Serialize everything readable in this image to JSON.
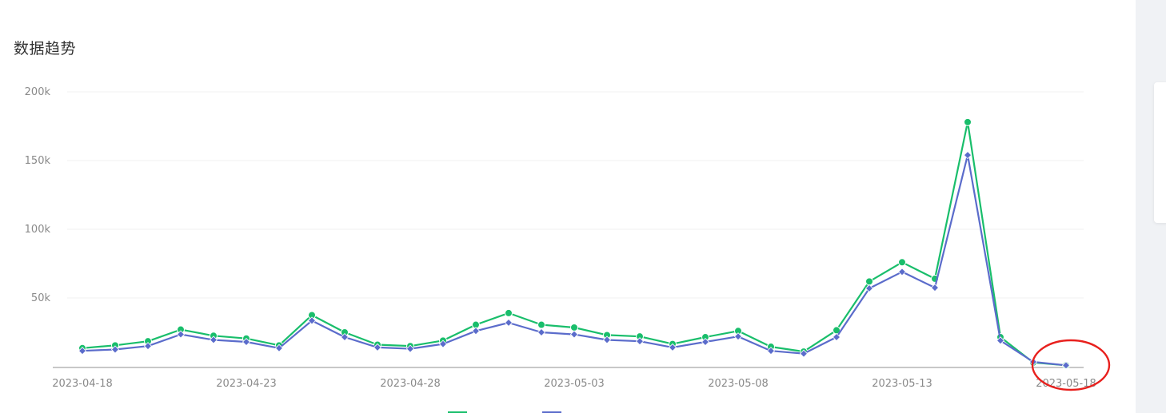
{
  "panel": {
    "title": "数据趋势"
  },
  "chart_data": {
    "type": "line",
    "title": "数据趋势",
    "x": [
      "2023-04-18",
      "2023-04-19",
      "2023-04-20",
      "2023-04-21",
      "2023-04-22",
      "2023-04-23",
      "2023-04-24",
      "2023-04-25",
      "2023-04-26",
      "2023-04-27",
      "2023-04-28",
      "2023-04-29",
      "2023-04-30",
      "2023-05-01",
      "2023-05-02",
      "2023-05-03",
      "2023-05-04",
      "2023-05-05",
      "2023-05-06",
      "2023-05-07",
      "2023-05-08",
      "2023-05-09",
      "2023-05-10",
      "2023-05-11",
      "2023-05-12",
      "2023-05-13",
      "2023-05-14",
      "2023-05-15",
      "2023-05-16",
      "2023-05-17",
      "2023-05-18"
    ],
    "x_tick_labels": [
      "2023-04-18",
      "2023-04-23",
      "2023-04-28",
      "2023-05-03",
      "2023-05-08",
      "2023-05-13",
      "2023-05-18"
    ],
    "y_tick_labels": [
      "200k",
      "150k",
      "100k",
      "50k"
    ],
    "ylim": [
      0,
      200000
    ],
    "grid": true,
    "legend_position": "bottom",
    "series": [
      {
        "name": "",
        "color": "#19be6b",
        "marker": "circle",
        "values": [
          13500,
          15500,
          18500,
          27000,
          22500,
          20500,
          15500,
          37500,
          25000,
          16000,
          15000,
          19000,
          30500,
          39000,
          30500,
          28500,
          23000,
          22000,
          16500,
          21500,
          26000,
          14500,
          11000,
          26500,
          62000,
          76000,
          64000,
          178000,
          21500,
          3000,
          1000
        ]
      },
      {
        "name": "",
        "color": "#5b6ccb",
        "marker": "diamond",
        "values": [
          11500,
          12500,
          15000,
          23500,
          19500,
          18000,
          13500,
          33500,
          21500,
          14000,
          13000,
          16500,
          26000,
          32000,
          25000,
          23500,
          19500,
          18500,
          14000,
          18000,
          22000,
          11500,
          9500,
          21500,
          57000,
          69000,
          57500,
          154000,
          19000,
          3500,
          1000
        ]
      }
    ]
  }
}
